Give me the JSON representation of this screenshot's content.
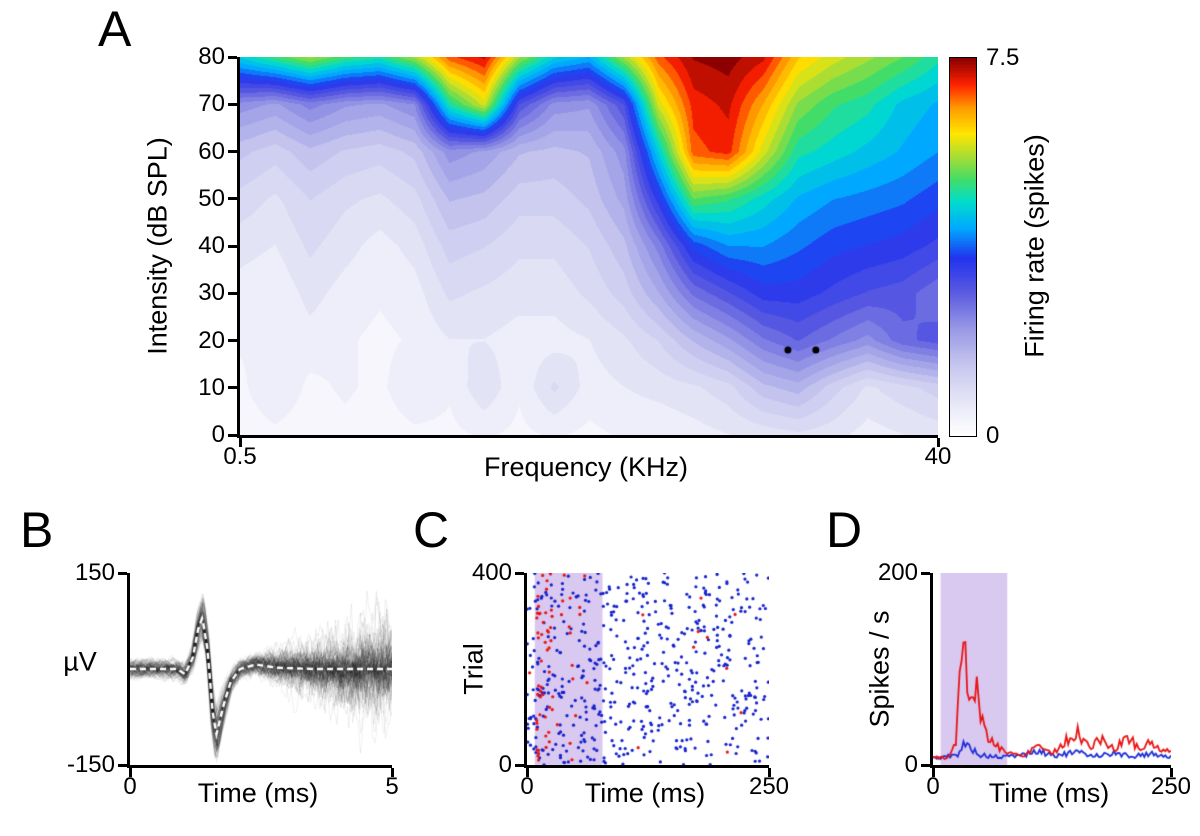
{
  "panels": {
    "a": {
      "label": "A"
    },
    "b": {
      "label": "B"
    },
    "c": {
      "label": "C"
    },
    "d": {
      "label": "D"
    }
  },
  "chart_data": [
    {
      "id": "frequency-response-area",
      "type": "heatmap",
      "xlabel": "Frequency (KHz)",
      "ylabel": "Intensity (dB SPL)",
      "x_tick_labels": [
        "0.5",
        "40"
      ],
      "y_tick_labels": [
        "0",
        "10",
        "20",
        "30",
        "40",
        "50",
        "60",
        "70",
        "80"
      ],
      "colorbar_label": "Firing rate (spikes)",
      "colorbar_tick_labels": [
        "0",
        "7.5"
      ],
      "x_range_khz": [
        0.5,
        40
      ],
      "x_scale": "log",
      "y_range_db": [
        0,
        80
      ],
      "z_range": [
        0,
        7.5
      ],
      "contour_levels": 32,
      "intensity_rows_bottom_to_top": [
        0,
        10,
        20,
        30,
        40,
        50,
        60,
        70,
        80
      ],
      "values": [
        [
          0.2,
          0.3,
          0.2,
          0.3,
          0.2,
          0.3,
          0.3,
          0.4,
          0.3,
          0.4,
          0.3,
          0.4,
          0.4,
          0.5,
          0.6,
          0.7,
          0.8,
          0.7,
          0.5,
          0.6,
          0.7
        ],
        [
          0.3,
          0.6,
          0.3,
          0.4,
          0.3,
          0.6,
          0.4,
          0.8,
          0.4,
          0.9,
          0.5,
          0.6,
          0.7,
          0.8,
          1.0,
          1.5,
          1.7,
          1.2,
          0.8,
          1.0,
          1.2
        ],
        [
          0.4,
          0.4,
          0.5,
          0.4,
          0.3,
          0.4,
          0.6,
          0.6,
          0.5,
          0.5,
          0.6,
          0.8,
          1.1,
          1.6,
          2.0,
          2.5,
          2.8,
          2.5,
          2.2,
          2.7,
          2.9
        ],
        [
          0.5,
          0.4,
          0.7,
          0.5,
          0.4,
          0.5,
          0.9,
          0.8,
          0.7,
          0.7,
          0.9,
          1.2,
          1.8,
          2.6,
          3.0,
          3.4,
          3.4,
          3.2,
          3.0,
          2.9,
          2.6
        ],
        [
          0.7,
          0.6,
          0.9,
          0.7,
          0.5,
          0.7,
          1.2,
          1.1,
          0.9,
          0.9,
          1.1,
          1.5,
          2.4,
          3.6,
          4.0,
          4.0,
          3.8,
          3.6,
          3.5,
          3.4,
          3.2
        ],
        [
          1.0,
          0.8,
          1.1,
          0.9,
          0.8,
          1.0,
          1.6,
          1.5,
          1.2,
          1.2,
          1.4,
          1.9,
          3.4,
          5.2,
          5.0,
          4.6,
          4.2,
          4.0,
          3.9,
          3.8,
          3.6
        ],
        [
          1.4,
          1.2,
          1.5,
          1.3,
          1.2,
          1.4,
          2.2,
          2.0,
          1.6,
          1.5,
          1.6,
          2.2,
          4.5,
          6.8,
          7.0,
          5.8,
          4.8,
          4.6,
          4.4,
          4.2,
          4.0
        ],
        [
          2.2,
          2.0,
          2.4,
          2.1,
          2.0,
          2.3,
          4.8,
          5.8,
          3.0,
          2.2,
          2.1,
          3.0,
          5.8,
          7.0,
          7.2,
          6.4,
          5.4,
          5.0,
          4.8,
          4.4,
          4.2
        ],
        [
          4.5,
          5.0,
          5.5,
          5.0,
          4.8,
          5.5,
          6.8,
          7.2,
          5.5,
          4.5,
          4.2,
          5.5,
          6.8,
          7.4,
          7.5,
          7.2,
          6.2,
          5.8,
          5.5,
          5.2,
          4.8
        ]
      ],
      "markers": {
        "color": "#000000",
        "points": [
          [
            0.785,
            18
          ],
          [
            0.825,
            18
          ]
        ]
      },
      "colormap_stops": [
        [
          0.0,
          "#ffffff"
        ],
        [
          0.08,
          "#e9e9f8"
        ],
        [
          0.18,
          "#c9c9ef"
        ],
        [
          0.28,
          "#9a9ae6"
        ],
        [
          0.38,
          "#5a5ae0"
        ],
        [
          0.47,
          "#2233ee"
        ],
        [
          0.55,
          "#00aaff"
        ],
        [
          0.62,
          "#00ddcc"
        ],
        [
          0.68,
          "#44dd66"
        ],
        [
          0.74,
          "#aadd33"
        ],
        [
          0.8,
          "#ffe600"
        ],
        [
          0.87,
          "#ff9900"
        ],
        [
          0.93,
          "#ff2200"
        ],
        [
          1.0,
          "#8b0000"
        ]
      ]
    },
    {
      "id": "spike-waveforms",
      "type": "line",
      "xlabel": "Time (ms)",
      "ylabel": "µV",
      "x_tick_labels": [
        "0",
        "5"
      ],
      "y_tick_labels": [
        "-150",
        "150"
      ],
      "xlim": [
        0,
        5
      ],
      "ylim": [
        -150,
        150
      ],
      "n_traces": 150,
      "trace_color": "rgba(0,0,0,0.085)",
      "mean_color": "#ffffff",
      "mean_dashed": true,
      "mean_waveform": [
        [
          0,
          0
        ],
        [
          0.9,
          0
        ],
        [
          1.05,
          -8
        ],
        [
          1.2,
          18
        ],
        [
          1.3,
          62
        ],
        [
          1.38,
          80
        ],
        [
          1.48,
          30
        ],
        [
          1.58,
          -70
        ],
        [
          1.65,
          -102
        ],
        [
          1.78,
          -58
        ],
        [
          1.92,
          -20
        ],
        [
          2.1,
          0
        ],
        [
          2.4,
          7
        ],
        [
          2.8,
          2
        ],
        [
          3.5,
          0
        ],
        [
          5,
          0
        ]
      ],
      "noise_seed": 7
    },
    {
      "id": "spike-raster",
      "type": "scatter",
      "xlabel": "Time (ms)",
      "ylabel": "Trial",
      "x_tick_labels": [
        "0",
        "250"
      ],
      "y_tick_labels": [
        "0",
        "400"
      ],
      "xlim": [
        0,
        250
      ],
      "ylim": [
        0,
        400
      ],
      "stim_window_ms": [
        8,
        78
      ],
      "stim_fill": "#d9c8ef",
      "spont_color": "#1522cc",
      "evoked_color": "#e81515",
      "n_spont": 530,
      "n_evoked_in_window": 60,
      "n_evoked_scattered": 16,
      "dot_radius": 1.6,
      "seed": 12
    },
    {
      "id": "psth",
      "type": "line",
      "xlabel": "Time (ms)",
      "ylabel": "Spikes / s",
      "x_tick_labels": [
        "0",
        "250"
      ],
      "y_tick_labels": [
        "0",
        "200"
      ],
      "xlim": [
        0,
        250
      ],
      "ylim": [
        0,
        200
      ],
      "stim_window_ms": [
        8,
        78
      ],
      "stim_fill": "#d9c8ef",
      "bin_ms": 2,
      "seed": 5,
      "series": [
        {
          "name": "evoked",
          "color": "#e81515",
          "noise": 0.45,
          "envelope": [
            [
              0,
              8
            ],
            [
              15,
              8
            ],
            [
              24,
              20
            ],
            [
              30,
              120
            ],
            [
              33,
              178
            ],
            [
              36,
              95
            ],
            [
              40,
              60
            ],
            [
              45,
              90
            ],
            [
              50,
              50
            ],
            [
              56,
              30
            ],
            [
              65,
              22
            ],
            [
              80,
              12
            ],
            [
              95,
              10
            ],
            [
              110,
              22
            ],
            [
              125,
              12
            ],
            [
              140,
              25
            ],
            [
              152,
              33
            ],
            [
              165,
              18
            ],
            [
              178,
              28
            ],
            [
              190,
              15
            ],
            [
              205,
              30
            ],
            [
              218,
              15
            ],
            [
              230,
              26
            ],
            [
              240,
              12
            ],
            [
              250,
              18
            ]
          ]
        },
        {
          "name": "spontaneous",
          "color": "#2030d8",
          "noise": 0.5,
          "envelope": [
            [
              0,
              7
            ],
            [
              25,
              10
            ],
            [
              33,
              22
            ],
            [
              40,
              18
            ],
            [
              50,
              10
            ],
            [
              70,
              8
            ],
            [
              90,
              10
            ],
            [
              110,
              14
            ],
            [
              130,
              10
            ],
            [
              150,
              13
            ],
            [
              170,
              10
            ],
            [
              190,
              12
            ],
            [
              210,
              9
            ],
            [
              230,
              12
            ],
            [
              250,
              8
            ]
          ]
        }
      ]
    }
  ]
}
